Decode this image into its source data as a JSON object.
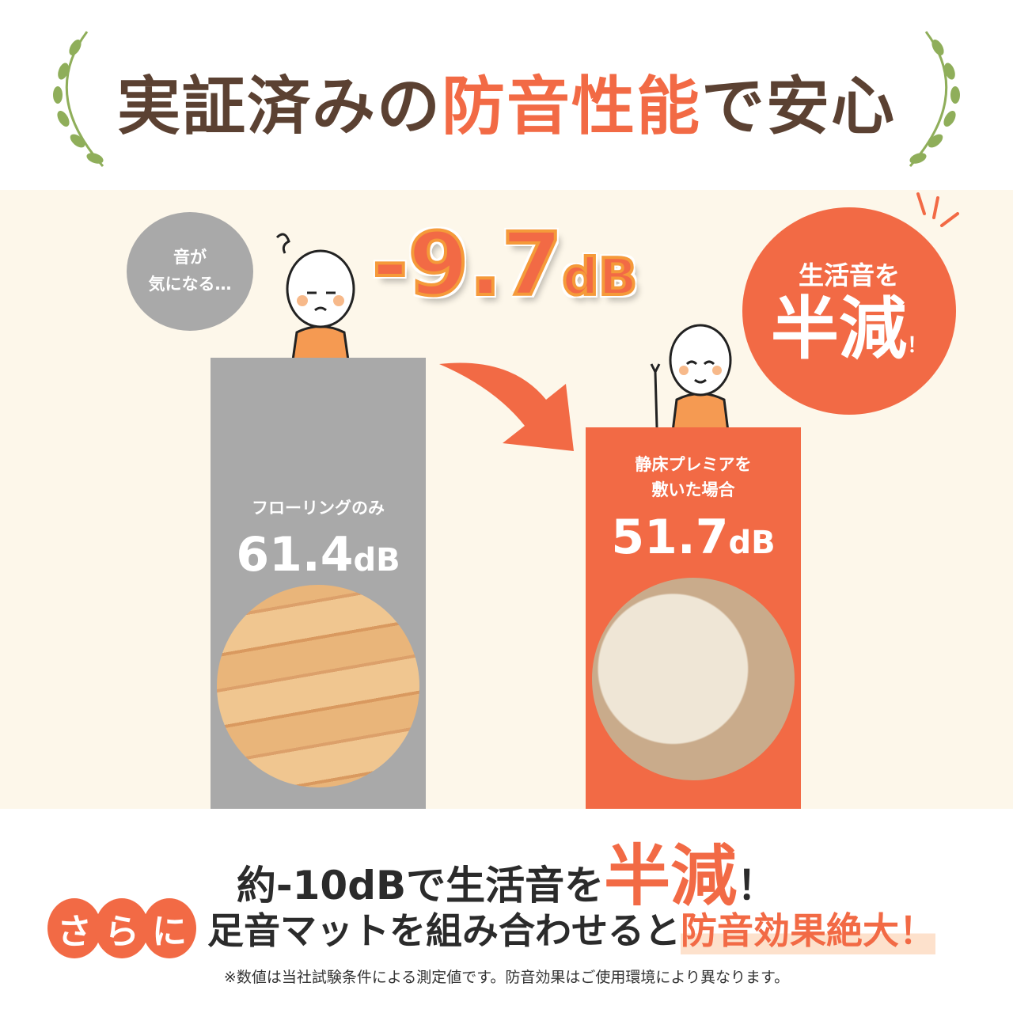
{
  "title": {
    "part1": "実証済みの",
    "highlight": "防音性能",
    "part2": "で安心"
  },
  "speech_bubble": {
    "line1": "音が",
    "line2": "気になる…"
  },
  "difference": {
    "value": "-9.7",
    "unit": "dB"
  },
  "badge": {
    "line1": "生活音を",
    "line2": "半減",
    "exclaim": "！"
  },
  "bars": [
    {
      "label_line1": "フローリングのみ",
      "label_line2": "",
      "value": "61.4",
      "unit": "dB",
      "color": "#a9a9a9",
      "image": "wood-flooring"
    },
    {
      "label_line1": "静床プレミアを",
      "label_line2": "敷いた場合",
      "value": "51.7",
      "unit": "dB",
      "color": "#f26a45",
      "image": "carpet-mat"
    }
  ],
  "bottom": {
    "line1_a": "約-10dBで生活音を",
    "line1_big": "半減",
    "line1_b": "！",
    "circles": [
      "さ",
      "ら",
      "に"
    ],
    "line2_a": "足音マットを組み合わせると",
    "line2_em": "防音効果絶大！",
    "note": "※数値は当社試験条件による測定値です。防音効果はご使用環境により異なります。"
  },
  "colors": {
    "accent": "#f26a45",
    "brown": "#5b4132",
    "gray": "#a9a9a9",
    "cream": "#fdf7ea",
    "laurel": "#8fae5a"
  }
}
